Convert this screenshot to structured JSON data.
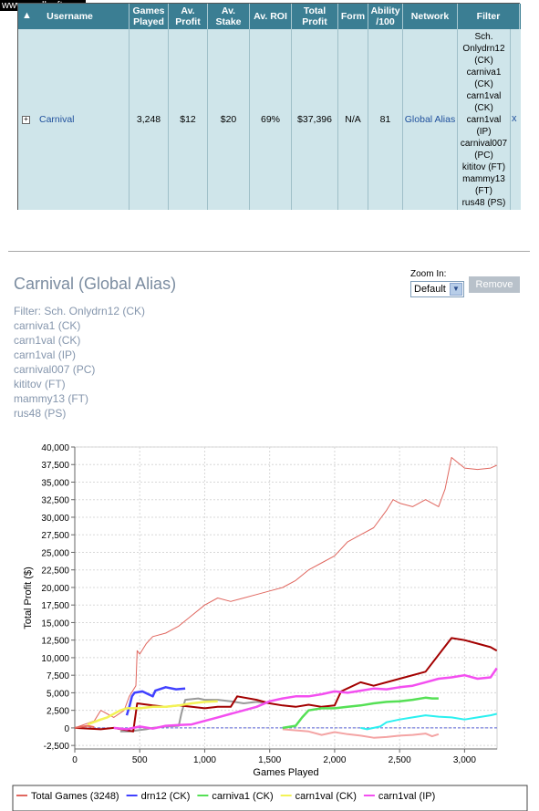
{
  "watermark": "www.zeallsoft.com",
  "table": {
    "headers": [
      "Username",
      "Games Played",
      "Av. Profit",
      "Av. Stake",
      "Av. ROI",
      "Total Profit",
      "Form",
      "Ability /100",
      "Network",
      "Filter"
    ],
    "row": {
      "username": "Carnival",
      "games_played": "3,248",
      "av_profit": "$12",
      "av_stake": "$20",
      "av_roi": "69%",
      "total_profit": "$37,396",
      "form": "N/A",
      "ability": "81",
      "network": "Global Alias",
      "filter_lines": [
        "Sch.",
        "Onlydrn12",
        "(CK)",
        "carniva1",
        "(CK)",
        "carn1val",
        "(CK)",
        "carn1val",
        "(IP)",
        "carnival007",
        "(PC)",
        "kititov (FT)",
        "mammy13",
        "(FT)",
        "rus48 (PS)"
      ],
      "remove_link": "x"
    }
  },
  "panel": {
    "title": "Carnival (Global Alias)",
    "filters": [
      "Filter: Sch. Onlydrn12 (CK)",
      "carniva1 (CK)",
      "carn1val (CK)",
      "carn1val (IP)",
      "carnival007 (PC)",
      "kititov (FT)",
      "mammy13 (FT)",
      "rus48 (PS)"
    ],
    "zoom_label": "Zoom In:",
    "zoom_value": "Default",
    "remove_button": "Remove"
  },
  "chart_data": {
    "type": "line",
    "xlabel": "Games Played",
    "ylabel": "Total Profit ($)",
    "xlim": [
      0,
      3250
    ],
    "ylim": [
      -3000,
      40000
    ],
    "xticks": [
      0,
      500,
      1000,
      1500,
      2000,
      2500,
      3000
    ],
    "xtick_labels": [
      "0",
      "500",
      "1,000",
      "1,500",
      "2,000",
      "2,500",
      "3,000"
    ],
    "yticks": [
      -2500,
      0,
      2500,
      5000,
      7500,
      10000,
      12500,
      15000,
      17500,
      20000,
      22500,
      25000,
      27500,
      30000,
      32500,
      35000,
      37500,
      40000
    ],
    "ytick_labels": [
      "-2,500",
      "0",
      "2,500",
      "5,000",
      "7,500",
      "10,000",
      "12,500",
      "15,000",
      "17,500",
      "20,000",
      "22,500",
      "25,000",
      "27,500",
      "30,000",
      "32,500",
      "35,000",
      "37,500",
      "40,000"
    ],
    "grid": true,
    "series": [
      {
        "name": "Total Games (3248)",
        "color": "#e0675f",
        "x": [
          0,
          150,
          200,
          250,
          300,
          380,
          420,
          470,
          480,
          500,
          550,
          600,
          700,
          800,
          900,
          1000,
          1100,
          1200,
          1300,
          1400,
          1500,
          1600,
          1700,
          1800,
          1900,
          2000,
          2100,
          2200,
          2300,
          2400,
          2450,
          2500,
          2600,
          2700,
          2800,
          2850,
          2900,
          3000,
          3100,
          3200,
          3248
        ],
        "y": [
          0,
          1000,
          2500,
          2000,
          1500,
          2500,
          4500,
          6000,
          11000,
          10500,
          12000,
          13000,
          13500,
          14500,
          16000,
          17500,
          18500,
          18000,
          18500,
          19000,
          19500,
          20000,
          21000,
          22500,
          23500,
          24500,
          26500,
          27500,
          28500,
          31000,
          32500,
          32000,
          31500,
          32500,
          31500,
          34000,
          38500,
          37000,
          36800,
          37000,
          37400
        ]
      },
      {
        "name": "drn12 (CK)",
        "color": "#4040ff",
        "x": [
          400,
          420,
          440,
          460,
          520,
          600,
          620,
          700,
          780,
          850
        ],
        "y": [
          1800,
          3000,
          4500,
          5000,
          5200,
          4500,
          5300,
          5800,
          5500,
          5600
        ]
      },
      {
        "name": "carniva1 (CK)",
        "color": "#55e055",
        "x": [
          1600,
          1700,
          1750,
          1800,
          1900,
          2000,
          2100,
          2200,
          2300,
          2400,
          2500,
          2600,
          2700,
          2750,
          2800
        ],
        "y": [
          0,
          300,
          1500,
          2500,
          2800,
          2800,
          3000,
          3200,
          3500,
          3700,
          3800,
          4000,
          4300,
          4200,
          4200
        ]
      },
      {
        "name": "carn1val (CK)",
        "color": "#f3f356",
        "x": [
          100,
          200,
          250,
          350,
          400,
          500,
          600,
          700,
          800,
          900,
          1000,
          1100
        ],
        "y": [
          500,
          1200,
          1500,
          2500,
          2800,
          2800,
          3000,
          3000,
          3200,
          3500,
          3700,
          3800
        ]
      },
      {
        "name": "carn1val (IP)",
        "color": "#f34ff0",
        "x": [
          300,
          400,
          500,
          600,
          700,
          800,
          900,
          1000,
          1100,
          1200,
          1300,
          1400,
          1500,
          1600,
          1700,
          1800,
          1900,
          2000,
          2100,
          2200,
          2300,
          2400,
          2500,
          2600,
          2700,
          2800,
          2900,
          3000,
          3100,
          3200,
          3248
        ],
        "y": [
          0,
          -200,
          200,
          -100,
          300,
          400,
          500,
          1000,
          1500,
          2000,
          2500,
          3000,
          3800,
          4200,
          4500,
          4500,
          4800,
          5200,
          5000,
          5300,
          5600,
          5500,
          5800,
          6000,
          6500,
          7000,
          7200,
          7500,
          7000,
          7200,
          8500
        ]
      }
    ],
    "legend": {
      "placement": "bottom",
      "visible_entries": [
        "Total Games (3248)",
        "drn12 (CK)",
        "carniva1 (CK)",
        "carn1val (CK)",
        "carn1val (IP)"
      ]
    },
    "extra_lines": [
      {
        "color": "#999999",
        "x": [
          350,
          420,
          500,
          550,
          600,
          700,
          800,
          820,
          850,
          950,
          1000,
          1100,
          1200,
          1300,
          1400,
          1500
        ],
        "y": [
          -500,
          -500,
          -300,
          -200,
          0,
          200,
          300,
          2000,
          4000,
          4200,
          4000,
          4000,
          3800,
          3500,
          3700,
          3500
        ]
      },
      {
        "color": "#a30000",
        "x": [
          0,
          200,
          300,
          450,
          480,
          600,
          700,
          800,
          900,
          1000,
          1100,
          1200,
          1250,
          1400,
          1500,
          1600,
          1700,
          1800,
          1900,
          2000,
          2050,
          2200,
          2300,
          2400,
          2500,
          2700,
          2900,
          3000,
          3100,
          3200,
          3248
        ],
        "y": [
          0,
          -200,
          0,
          -500,
          3500,
          3200,
          3000,
          3200,
          3000,
          2800,
          3000,
          3000,
          4500,
          4000,
          3500,
          3200,
          3000,
          3300,
          3000,
          3200,
          5200,
          6500,
          6000,
          6500,
          7000,
          8000,
          12800,
          12500,
          12000,
          11500,
          11000
        ]
      },
      {
        "color": "#2bf0f0",
        "x": [
          2200,
          2250,
          2300,
          2350,
          2400,
          2500,
          2600,
          2700,
          2800,
          2900,
          3000,
          3100,
          3200,
          3248
        ],
        "y": [
          0,
          -200,
          0,
          200,
          800,
          1200,
          1500,
          1800,
          1600,
          1500,
          1200,
          1500,
          1800,
          2000
        ]
      },
      {
        "color": "#f4a4a4",
        "x": [
          1600,
          1800,
          1900,
          2000,
          2100,
          2200,
          2300,
          2400,
          2500,
          2600,
          2700,
          2750,
          2800
        ],
        "y": [
          -200,
          -500,
          -1000,
          -600,
          -900,
          -1100,
          -1400,
          -1300,
          -1100,
          -1000,
          -800,
          -1200,
          -900
        ]
      },
      {
        "color": "#e86a5b",
        "x": [
          0,
          100,
          150
        ],
        "y": [
          0,
          300,
          100
        ]
      }
    ]
  }
}
